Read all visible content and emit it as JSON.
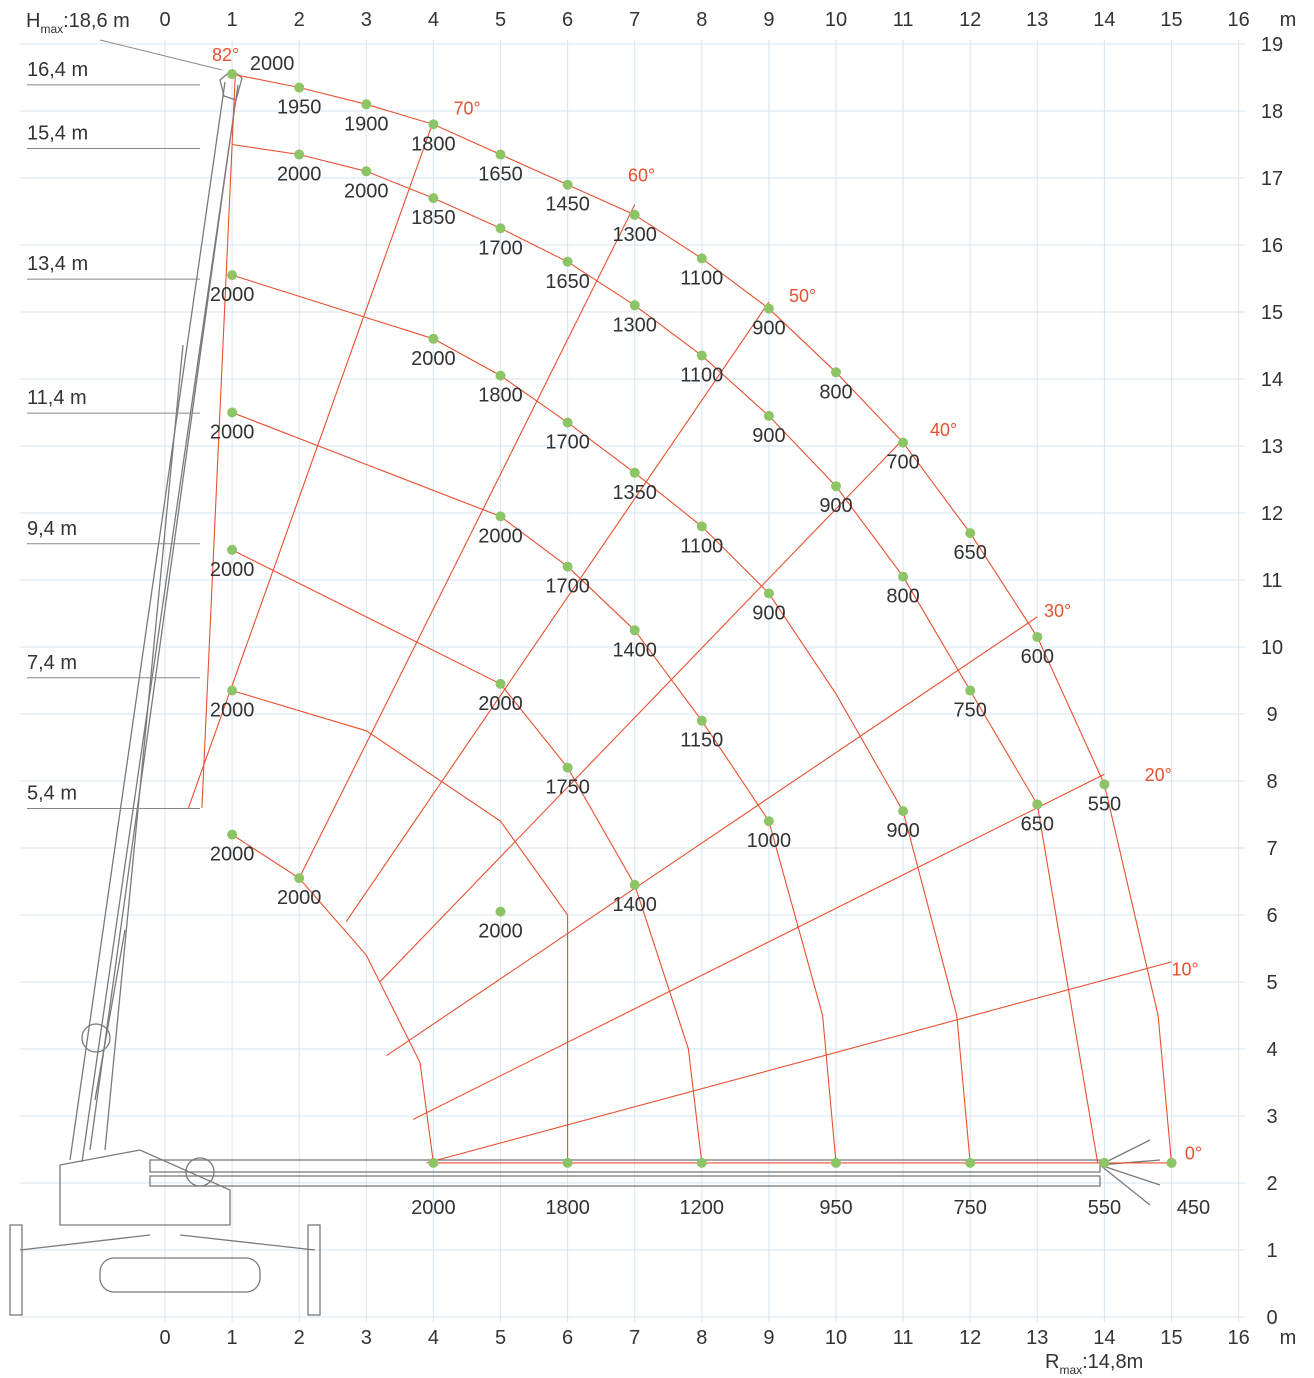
{
  "chart_data": {
    "type": "scatter",
    "title": "",
    "x_ticks": [
      "0",
      "1",
      "2",
      "3",
      "4",
      "5",
      "6",
      "7",
      "8",
      "9",
      "10",
      "11",
      "12",
      "13",
      "14",
      "15",
      "16"
    ],
    "y_ticks": [
      "0",
      "1",
      "2",
      "3",
      "4",
      "5",
      "6",
      "7",
      "8",
      "9",
      "10",
      "11",
      "12",
      "13",
      "14",
      "15",
      "16",
      "17",
      "18",
      "19"
    ],
    "x_unit": "m",
    "y_unit": "m",
    "x_range": [
      -1,
      16
    ],
    "y_range": [
      0,
      19
    ],
    "hmax_label": {
      "main": "H",
      "sub": "max",
      "rest": ":18,6 m"
    },
    "rmax_label": {
      "main": "R",
      "sub": "max",
      "rest": ":14,8m"
    },
    "boom_lengths": [
      "16,4 m",
      "15,4 m",
      "13,4 m",
      "11,4 m",
      "9,4 m",
      "7,4 m",
      "5,4 m"
    ],
    "angles": [
      "82°",
      "70°",
      "60°",
      "50°",
      "40°",
      "30°",
      "20°",
      "10°",
      "0°"
    ],
    "ground_capacities": [
      {
        "x": 4,
        "label": "2000"
      },
      {
        "x": 6,
        "label": "1800"
      },
      {
        "x": 8,
        "label": "1200"
      },
      {
        "x": 10,
        "label": "950"
      },
      {
        "x": 12,
        "label": "750"
      },
      {
        "x": 14,
        "label": "550"
      },
      {
        "x": 15,
        "label": "450"
      }
    ],
    "points": [
      {
        "x": 1,
        "y": 18.55,
        "label": "2000"
      },
      {
        "x": 2,
        "y": 18.35,
        "label": "1950"
      },
      {
        "x": 3,
        "y": 18.1,
        "label": "1900"
      },
      {
        "x": 4,
        "y": 17.8,
        "label": "1800"
      },
      {
        "x": 5,
        "y": 17.35,
        "label": "1650"
      },
      {
        "x": 6,
        "y": 16.9,
        "label": "1450"
      },
      {
        "x": 7,
        "y": 16.45,
        "label": "1300"
      },
      {
        "x": 8,
        "y": 15.8,
        "label": "1100"
      },
      {
        "x": 9,
        "y": 15.05,
        "label": "900"
      },
      {
        "x": 10,
        "y": 14.1,
        "label": "800"
      },
      {
        "x": 11,
        "y": 13.05,
        "label": "700"
      },
      {
        "x": 12,
        "y": 11.7,
        "label": "650"
      },
      {
        "x": 13,
        "y": 10.15,
        "label": "600"
      },
      {
        "x": 14,
        "y": 7.95,
        "label": "550"
      },
      {
        "x": 15,
        "y": 2.3,
        "label": ""
      },
      {
        "x": 2,
        "y": 17.35,
        "label": "2000"
      },
      {
        "x": 3,
        "y": 17.1,
        "label": "2000"
      },
      {
        "x": 4,
        "y": 16.7,
        "label": "1850"
      },
      {
        "x": 5,
        "y": 16.25,
        "label": "1700"
      },
      {
        "x": 6,
        "y": 15.75,
        "label": "1650"
      },
      {
        "x": 7,
        "y": 15.1,
        "label": "1300"
      },
      {
        "x": 8,
        "y": 14.35,
        "label": "1100"
      },
      {
        "x": 9,
        "y": 13.45,
        "label": "900"
      },
      {
        "x": 10,
        "y": 12.4,
        "label": "900"
      },
      {
        "x": 11,
        "y": 11.05,
        "label": "800"
      },
      {
        "x": 12,
        "y": 9.35,
        "label": "750"
      },
      {
        "x": 13,
        "y": 7.65,
        "label": "650"
      },
      {
        "x": 1,
        "y": 15.55,
        "label": "2000"
      },
      {
        "x": 4,
        "y": 14.6,
        "label": "2000"
      },
      {
        "x": 5,
        "y": 14.05,
        "label": "1800"
      },
      {
        "x": 6,
        "y": 13.35,
        "label": "1700"
      },
      {
        "x": 7,
        "y": 12.6,
        "label": "1350"
      },
      {
        "x": 8,
        "y": 11.8,
        "label": "1100"
      },
      {
        "x": 9,
        "y": 10.8,
        "label": "900"
      },
      {
        "x": 1,
        "y": 13.5,
        "label": "2000"
      },
      {
        "x": 5,
        "y": 11.95,
        "label": "2000"
      },
      {
        "x": 6,
        "y": 11.2,
        "label": "1700"
      },
      {
        "x": 7,
        "y": 10.25,
        "label": "1400"
      },
      {
        "x": 8,
        "y": 8.9,
        "label": "1150"
      },
      {
        "x": 9,
        "y": 7.4,
        "label": "1000"
      },
      {
        "x": 11,
        "y": 7.55,
        "label": "900"
      },
      {
        "x": 1,
        "y": 11.45,
        "label": "2000"
      },
      {
        "x": 5,
        "y": 9.45,
        "label": "2000"
      },
      {
        "x": 6,
        "y": 8.2,
        "label": "1750"
      },
      {
        "x": 7,
        "y": 6.45,
        "label": "1400"
      },
      {
        "x": 1,
        "y": 9.35,
        "label": "2000"
      },
      {
        "x": 1,
        "y": 7.2,
        "label": "2000"
      },
      {
        "x": 2,
        "y": 6.55,
        "label": "2000"
      },
      {
        "x": 5,
        "y": 6.05,
        "label": "2000"
      }
    ]
  }
}
